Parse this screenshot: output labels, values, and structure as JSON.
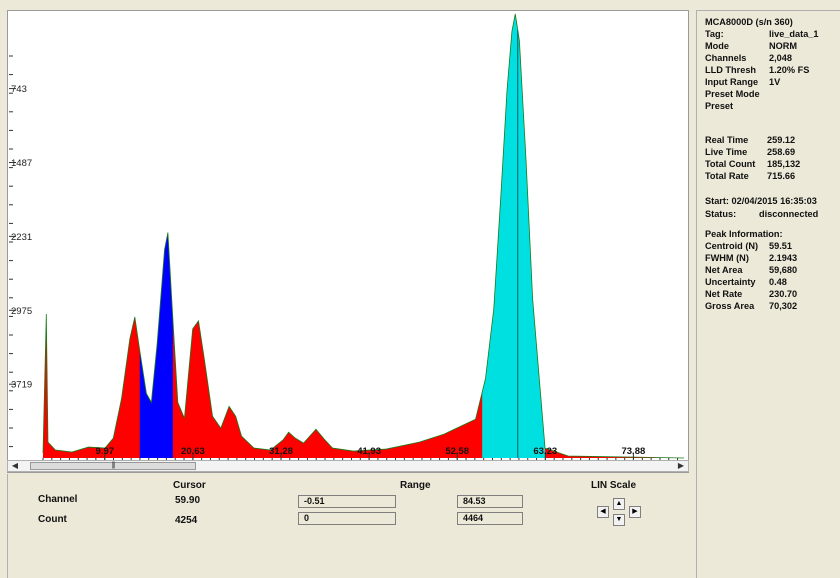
{
  "plot": {
    "colors": {
      "background": "#ffffff",
      "fill": "#ff0000",
      "roi1": "#0000ff",
      "roi2": "#00e0e0",
      "outline": "#1a7a1a"
    },
    "y_labels": [
      "3719",
      "2975",
      "2231",
      "1487",
      "743"
    ],
    "x_labels": [
      "9.97",
      "20.63",
      "31.28",
      "41.93",
      "52.58",
      "63.23",
      "73.88"
    ]
  },
  "chart_data": {
    "type": "area",
    "xlim": [
      2.5,
      80.0
    ],
    "ylim": [
      0,
      4480
    ],
    "y_ticks": [
      743,
      1487,
      2231,
      2975,
      3719
    ],
    "x_ticks": [
      9.97,
      20.63,
      31.28,
      41.93,
      52.58,
      63.23,
      73.88
    ],
    "series": [],
    "points": [
      [
        2.5,
        50
      ],
      [
        2.9,
        1450
      ],
      [
        3.1,
        160
      ],
      [
        4,
        80
      ],
      [
        6,
        60
      ],
      [
        8,
        110
      ],
      [
        10,
        100
      ],
      [
        11,
        200
      ],
      [
        12,
        600
      ],
      [
        13,
        1200
      ],
      [
        13.6,
        1420
      ],
      [
        14.2,
        1080
      ],
      [
        15,
        650
      ],
      [
        15.6,
        560
      ],
      [
        16.3,
        1150
      ],
      [
        17.2,
        2100
      ],
      [
        17.6,
        2270
      ],
      [
        18.2,
        1400
      ],
      [
        18.8,
        560
      ],
      [
        19.6,
        400
      ],
      [
        20.6,
        1300
      ],
      [
        21.3,
        1380
      ],
      [
        22,
        1000
      ],
      [
        23,
        420
      ],
      [
        24,
        300
      ],
      [
        25,
        520
      ],
      [
        25.8,
        420
      ],
      [
        26.5,
        220
      ],
      [
        28,
        100
      ],
      [
        30,
        80
      ],
      [
        31.5,
        180
      ],
      [
        32.2,
        260
      ],
      [
        33,
        200
      ],
      [
        34,
        150
      ],
      [
        35.5,
        290
      ],
      [
        36.5,
        190
      ],
      [
        37.5,
        100
      ],
      [
        40,
        70
      ],
      [
        44,
        90
      ],
      [
        48,
        160
      ],
      [
        51,
        240
      ],
      [
        53,
        320
      ],
      [
        54.8,
        390
      ],
      [
        56,
        800
      ],
      [
        57,
        1500
      ],
      [
        57.9,
        2700
      ],
      [
        58.6,
        3700
      ],
      [
        59.2,
        4300
      ],
      [
        59.6,
        4470
      ],
      [
        60.1,
        4200
      ],
      [
        60.9,
        3000
      ],
      [
        61.7,
        1600
      ],
      [
        62.5,
        800
      ],
      [
        63.2,
        100
      ],
      [
        66,
        20
      ],
      [
        80,
        0
      ]
    ],
    "roi": [
      {
        "x0": 14.2,
        "x1": 18.2,
        "color": "#0000ff"
      },
      {
        "x0": 55.6,
        "x1": 63.2,
        "color": "#00e0e0"
      }
    ],
    "cursor_x": 59.9
  },
  "bottom": {
    "cursor_header": "Cursor",
    "range_header": "Range",
    "scale_label": "LIN Scale",
    "channel_label": "Channel",
    "count_label": "Count",
    "channel_cursor": "59.90",
    "count_cursor": "4254",
    "range_channel_min": "-0.51",
    "range_channel_max": "84.53",
    "range_count_min": "0",
    "range_count_max": "4464"
  },
  "info": {
    "title": "MCA8000D (s/n    360)",
    "rows": [
      {
        "k": "Tag:",
        "v": "live_data_1"
      },
      {
        "k": "Mode",
        "v": "NORM"
      },
      {
        "k": "Channels",
        "v": "2,048"
      },
      {
        "k": "LLD Thresh",
        "v": "1.20% FS"
      },
      {
        "k": "Input Range",
        "v": "1V"
      },
      {
        "k": "Preset Mode",
        "v": ""
      },
      {
        "k": "Preset",
        "v": ""
      }
    ],
    "time_rows": [
      {
        "k": "Real Time",
        "v": "259.12"
      },
      {
        "k": "Live Time",
        "v": "258.69"
      },
      {
        "k": "Total Count",
        "v": "185,132"
      },
      {
        "k": "Total Rate",
        "v": "715.66"
      }
    ],
    "start_label": "Start: 02/04/2015 16:35:03",
    "status_label": "Status:",
    "status_value": "disconnected",
    "peak_header": "Peak Information:",
    "peak_rows": [
      {
        "k": "Centroid (N)",
        "v": "59.51"
      },
      {
        "k": "FWHM (N)",
        "v": "2.1943"
      },
      {
        "k": "Net Area",
        "v": "59,680"
      },
      {
        "k": "Uncertainty",
        "v": "0.48"
      },
      {
        "k": "Net Rate",
        "v": "230.70"
      },
      {
        "k": "Gross Area",
        "v": "70,302"
      }
    ]
  }
}
